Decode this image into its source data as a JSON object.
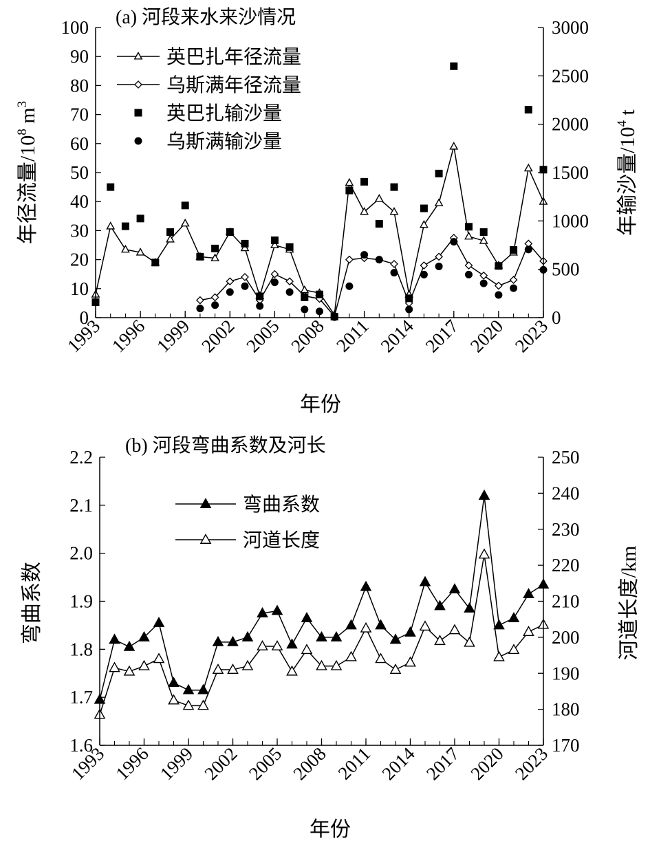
{
  "figure": {
    "colors": {
      "ink": "#000000",
      "background": "#ffffff"
    }
  },
  "chart_data": [
    {
      "id": "a",
      "type": "line",
      "title": "(a) 河段来水来沙情况",
      "xlabel": "年份",
      "ylabel": "年径流量/10⁸ m³",
      "ylabel_right": "年输沙量/10⁴ t",
      "xlim": [
        1993,
        2023
      ],
      "ylim": [
        0,
        100
      ],
      "ylim_right": [
        0,
        3000
      ],
      "x_ticks": [
        "1993",
        "1996",
        "1999",
        "2002",
        "2005",
        "2008",
        "2011",
        "2014",
        "2017",
        "2020",
        "2023"
      ],
      "y_ticks": [
        "0",
        "10",
        "20",
        "30",
        "40",
        "50",
        "60",
        "70",
        "80",
        "90",
        "100"
      ],
      "y_ticks_right": [
        "0",
        "500",
        "1000",
        "1500",
        "2000",
        "2500",
        "3000"
      ],
      "legend_position": "top-left",
      "series": [
        {
          "name": "英巴扎年径流量",
          "axis": "left",
          "marker": "open-triangle",
          "line": true,
          "x": [
            1993,
            1994,
            1995,
            1996,
            1997,
            1998,
            1999,
            2000,
            2001,
            2002,
            2003,
            2004,
            2005,
            2006,
            2007,
            2008,
            2009,
            2010,
            2011,
            2012,
            2013,
            2014,
            2015,
            2016,
            2017,
            2018,
            2019,
            2020,
            2021,
            2022,
            2023
          ],
          "values": [
            8,
            31.5,
            23.5,
            22.5,
            19,
            27,
            32.5,
            21,
            20.5,
            29.5,
            24,
            7.5,
            25,
            23.5,
            9.5,
            8.5,
            1,
            46.5,
            36.5,
            41,
            36.5,
            8,
            32,
            39.5,
            59,
            28,
            26.5,
            18,
            22.5,
            51.5,
            40
          ]
        },
        {
          "name": "乌斯满年径流量",
          "axis": "left",
          "marker": "open-diamond",
          "line": true,
          "x": [
            2000,
            2001,
            2002,
            2003,
            2004,
            2005,
            2006,
            2007,
            2008,
            2009,
            2010,
            2011,
            2012,
            2013,
            2014,
            2015,
            2016,
            2017,
            2018,
            2019,
            2020,
            2021,
            2022,
            2023
          ],
          "values": [
            6,
            7,
            12.5,
            14,
            6,
            15,
            12.5,
            7.5,
            6.5,
            0.5,
            20,
            20.5,
            20,
            18.5,
            5,
            18,
            21,
            27.5,
            18,
            14.5,
            11,
            13,
            25.5,
            19.5
          ]
        },
        {
          "name": "英巴扎输沙量",
          "axis": "right",
          "marker": "filled-square",
          "line": false,
          "x": [
            1993,
            1994,
            1995,
            1996,
            1997,
            1998,
            1999,
            2000,
            2001,
            2002,
            2003,
            2004,
            2005,
            2006,
            2007,
            2008,
            2009,
            2010,
            2011,
            2012,
            2013,
            2014,
            2015,
            2016,
            2017,
            2018,
            2019,
            2020,
            2021,
            2022,
            2023
          ],
          "values": [
            160,
            1350,
            945,
            1025,
            570,
            885,
            1160,
            630,
            715,
            885,
            765,
            220,
            800,
            730,
            210,
            240,
            10,
            1315,
            1405,
            970,
            1350,
            200,
            1130,
            1490,
            2600,
            940,
            885,
            535,
            700,
            2150,
            1530
          ]
        },
        {
          "name": "乌斯满输沙量",
          "axis": "right",
          "marker": "filled-circle",
          "line": false,
          "x": [
            2000,
            2001,
            2002,
            2003,
            2004,
            2005,
            2006,
            2007,
            2008,
            2009,
            2010,
            2011,
            2012,
            2013,
            2014,
            2015,
            2016,
            2017,
            2018,
            2019,
            2020,
            2021,
            2022,
            2023
          ],
          "values": [
            95,
            130,
            265,
            325,
            120,
            365,
            265,
            85,
            65,
            5,
            325,
            650,
            600,
            465,
            85,
            445,
            530,
            785,
            445,
            355,
            235,
            305,
            705,
            495
          ]
        }
      ]
    },
    {
      "id": "b",
      "type": "line",
      "title": "(b) 河段弯曲系数及河长",
      "xlabel": "年份",
      "ylabel": "弯曲系数",
      "ylabel_right": "河道长度/km",
      "xlim": [
        1993,
        2023
      ],
      "ylim": [
        1.6,
        2.2
      ],
      "ylim_right": [
        170,
        250
      ],
      "x_ticks": [
        "1993",
        "1996",
        "1999",
        "2002",
        "2005",
        "2008",
        "2011",
        "2014",
        "2017",
        "2020",
        "2023"
      ],
      "y_ticks": [
        "1.6",
        "1.7",
        "1.8",
        "1.9",
        "2.0",
        "2.1",
        "2.2"
      ],
      "y_ticks_right": [
        "170",
        "180",
        "190",
        "200",
        "210",
        "220",
        "230",
        "240",
        "250"
      ],
      "legend_position": "top-center",
      "series": [
        {
          "name": "弯曲系数",
          "axis": "left",
          "marker": "filled-triangle",
          "line": true,
          "x": [
            1993,
            1994,
            1995,
            1996,
            1997,
            1998,
            1999,
            2000,
            2001,
            2002,
            2003,
            2004,
            2005,
            2006,
            2007,
            2008,
            2009,
            2010,
            2011,
            2012,
            2013,
            2014,
            2015,
            2016,
            2017,
            2018,
            2019,
            2020,
            2021,
            2022,
            2023
          ],
          "values": [
            1.695,
            1.82,
            1.805,
            1.825,
            1.855,
            1.73,
            1.715,
            1.715,
            1.815,
            1.815,
            1.825,
            1.875,
            1.88,
            1.81,
            1.865,
            1.825,
            1.825,
            1.85,
            1.93,
            1.85,
            1.82,
            1.835,
            1.94,
            1.89,
            1.925,
            1.885,
            2.12,
            1.85,
            1.865,
            1.915,
            1.935
          ]
        },
        {
          "name": "河道长度",
          "axis": "right",
          "marker": "open-triangle",
          "line": true,
          "x": [
            1993,
            1994,
            1995,
            1996,
            1997,
            1998,
            1999,
            2000,
            2001,
            2002,
            2003,
            2004,
            2005,
            2006,
            2007,
            2008,
            2009,
            2010,
            2011,
            2012,
            2013,
            2014,
            2015,
            2016,
            2017,
            2018,
            2019,
            2020,
            2021,
            2022,
            2023
          ],
          "values": [
            178.5,
            191.5,
            190.5,
            192,
            194,
            182.5,
            181,
            181,
            191,
            191,
            192,
            197.5,
            197.5,
            190.5,
            196.5,
            192,
            192,
            194.5,
            202.5,
            194,
            191,
            193,
            203,
            199,
            202,
            198.5,
            223,
            194.5,
            196.5,
            201.5,
            203.5
          ]
        }
      ]
    }
  ]
}
